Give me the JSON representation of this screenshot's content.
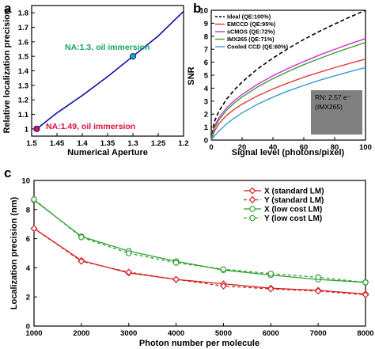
{
  "colors": {
    "na_curve": "#1010a8",
    "na_point_top": "#1bb3a0",
    "na_point_bottom": "#d8103c",
    "annot_green": "#12a85a",
    "annot_red": "#d8103c",
    "ideal": "#000000",
    "emccd": "#e8383a",
    "scmos": "#d030d0",
    "imx265": "#3aa038",
    "cooled_ccd": "#3a9ad8",
    "standard_lm": "#d42020",
    "low_cost_lm": "#30a030",
    "noise_box": "#808080"
  },
  "chart_data": [
    {
      "panel": "a",
      "type": "line",
      "xlabel": "Numerical Aperture",
      "ylabel": "Relative localization precision",
      "xlim": [
        1.5,
        1.2
      ],
      "ylim": [
        0.95,
        1.85
      ],
      "x_reversed": true,
      "xticks": [
        "1.5",
        "1.45",
        "1.4",
        "1.35",
        "1.3",
        "1.25",
        "1.2"
      ],
      "yticks": [
        "1",
        "1.1",
        "1.2",
        "1.3",
        "1.4",
        "1.5",
        "1.6",
        "1.7",
        "1.8"
      ],
      "series": [
        {
          "x": [
            1.49,
            1.45,
            1.4,
            1.35,
            1.3,
            1.25,
            1.2
          ],
          "y": [
            1.0,
            1.11,
            1.23,
            1.36,
            1.5,
            1.64,
            1.81
          ]
        }
      ],
      "highlighted_points": [
        {
          "x": 1.3,
          "y": 1.5,
          "label": "NA:1.3, oil immersion"
        },
        {
          "x": 1.49,
          "y": 1.0,
          "label": "NA:1.49, oil immersion"
        }
      ]
    },
    {
      "panel": "b",
      "type": "line",
      "xlabel": "Signal level (photons/pixel)",
      "ylabel": "SNR",
      "xlim": [
        0,
        100
      ],
      "ylim": [
        0,
        10
      ],
      "xticks": [
        "0",
        "20",
        "40",
        "60",
        "80",
        "100"
      ],
      "yticks": [
        "0",
        "1",
        "2",
        "3",
        "4",
        "5",
        "6",
        "7",
        "8",
        "9",
        "10"
      ],
      "x": [
        0,
        2,
        5,
        10,
        15,
        20,
        30,
        40,
        50,
        60,
        70,
        80,
        90,
        100
      ],
      "series": [
        {
          "name": "Ideal (QE:100%)",
          "dashed": true,
          "values": [
            0,
            1.41,
            2.24,
            3.16,
            3.87,
            4.47,
            5.48,
            6.32,
            7.07,
            7.75,
            8.37,
            8.94,
            9.49,
            10.0
          ]
        },
        {
          "name": "EMCCD (QE:95%)",
          "values": [
            0,
            0.66,
            1.26,
            1.91,
            2.38,
            2.77,
            3.41,
            3.94,
            4.41,
            4.84,
            5.22,
            5.58,
            5.92,
            6.24
          ]
        },
        {
          "name": "sCMOS (QE:72%)",
          "values": [
            0,
            1.04,
            1.73,
            2.49,
            3.05,
            3.51,
            4.29,
            4.96,
            5.53,
            6.05,
            6.54,
            6.99,
            7.42,
            7.82
          ]
        },
        {
          "name": "IMX265 (QE:71%)",
          "values": [
            0,
            0.88,
            1.56,
            2.31,
            2.86,
            3.32,
            4.09,
            4.73,
            5.3,
            5.81,
            6.28,
            6.72,
            7.13,
            7.52
          ]
        },
        {
          "name": "Cooled CCD (QE:60%)",
          "values": [
            0,
            0.3,
            0.7,
            1.25,
            1.7,
            2.09,
            2.76,
            3.31,
            3.79,
            4.21,
            4.6,
            4.95,
            5.28,
            5.59
          ]
        }
      ],
      "inset_text": [
        "RN: 2.57 e⁻",
        "(IMX265)"
      ]
    },
    {
      "panel": "c",
      "type": "line",
      "xlabel": "Photon number per molecule",
      "ylabel": "Localization precision (nm)",
      "xlim": [
        1000,
        8000
      ],
      "ylim": [
        0,
        10
      ],
      "xticks": [
        "1000",
        "2000",
        "3000",
        "4000",
        "5000",
        "6000",
        "7000",
        "8000"
      ],
      "yticks": [
        "0",
        "2",
        "4",
        "6",
        "8",
        "10"
      ],
      "x": [
        1000,
        2000,
        3000,
        4000,
        5000,
        6000,
        7000,
        8000
      ],
      "series": [
        {
          "name": "X (standard LM)",
          "dashed": false,
          "marker": "diamond",
          "values": [
            6.7,
            4.5,
            3.65,
            3.2,
            2.9,
            2.6,
            2.45,
            2.2
          ]
        },
        {
          "name": "Y (standard LM)",
          "dashed": true,
          "marker": "diamond",
          "values": [
            6.7,
            4.45,
            3.7,
            3.2,
            2.75,
            2.55,
            2.4,
            2.15
          ]
        },
        {
          "name": "X (low cost LM)",
          "dashed": false,
          "marker": "circle",
          "values": [
            8.65,
            6.15,
            5.15,
            4.45,
            3.85,
            3.5,
            3.2,
            3.0
          ]
        },
        {
          "name": "Y (low cost LM)",
          "dashed": true,
          "marker": "circle",
          "values": [
            8.7,
            6.1,
            5.0,
            4.35,
            3.9,
            3.6,
            3.35,
            3.0
          ]
        }
      ]
    }
  ]
}
